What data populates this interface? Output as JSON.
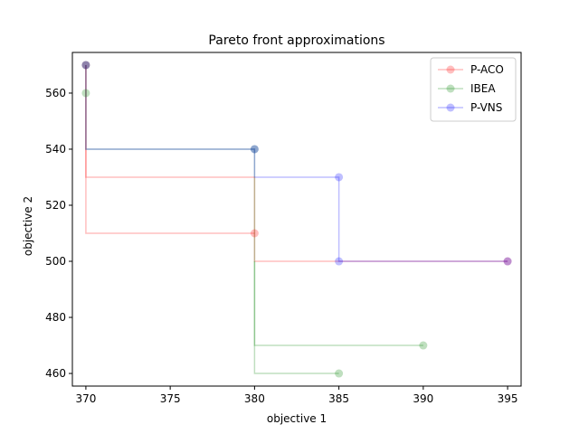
{
  "chart_data": {
    "type": "line",
    "title": "Pareto front approximations",
    "xlabel": "objective 1",
    "ylabel": "objective 2",
    "xlim": [
      369.2,
      395.8
    ],
    "ylim": [
      455.5,
      574.5
    ],
    "xticks": [
      370,
      375,
      380,
      385,
      390,
      395
    ],
    "yticks": [
      460,
      480,
      500,
      520,
      540,
      560
    ],
    "grid": false,
    "legend_position": "top-right",
    "series": [
      {
        "name": "P-ACO",
        "color": "#ff0000",
        "alpha": 0.25,
        "points": [
          [
            370,
            570
          ],
          [
            370,
            530
          ],
          [
            380,
            530
          ],
          [
            380,
            500
          ],
          [
            395,
            500
          ]
        ],
        "marker_points": [
          [
            370,
            570
          ],
          [
            380,
            510
          ],
          [
            395,
            500
          ]
        ]
      },
      {
        "name": "P-ACO",
        "color": "#ff0000",
        "alpha": 0.25,
        "points": [
          [
            370,
            570
          ],
          [
            370,
            510
          ],
          [
            380,
            510
          ]
        ],
        "marker_points": []
      },
      {
        "name": "IBEA",
        "color": "#008000",
        "alpha": 0.25,
        "points": [
          [
            370,
            570
          ],
          [
            370,
            540
          ],
          [
            380,
            540
          ],
          [
            380,
            460
          ],
          [
            385,
            460
          ]
        ],
        "marker_points": [
          [
            370,
            570
          ],
          [
            370,
            560
          ],
          [
            380,
            540
          ],
          [
            385,
            460
          ]
        ]
      },
      {
        "name": "IBEA",
        "color": "#008000",
        "alpha": 0.25,
        "points": [
          [
            380,
            500
          ],
          [
            380,
            470
          ],
          [
            390,
            470
          ]
        ],
        "marker_points": [
          [
            390,
            470
          ]
        ]
      },
      {
        "name": "P-VNS",
        "color": "#0000ff",
        "alpha": 0.25,
        "points": [
          [
            370,
            570
          ],
          [
            370,
            540
          ],
          [
            380,
            540
          ],
          [
            380,
            530
          ],
          [
            385,
            530
          ],
          [
            385,
            500
          ],
          [
            395,
            500
          ]
        ],
        "marker_points": [
          [
            370,
            570
          ],
          [
            380,
            540
          ],
          [
            385,
            530
          ],
          [
            385,
            500
          ],
          [
            395,
            500
          ]
        ]
      }
    ],
    "legend": [
      {
        "label": "P-ACO",
        "color": "#ff0000"
      },
      {
        "label": "IBEA",
        "color": "#008000"
      },
      {
        "label": "P-VNS",
        "color": "#0000ff"
      }
    ]
  }
}
